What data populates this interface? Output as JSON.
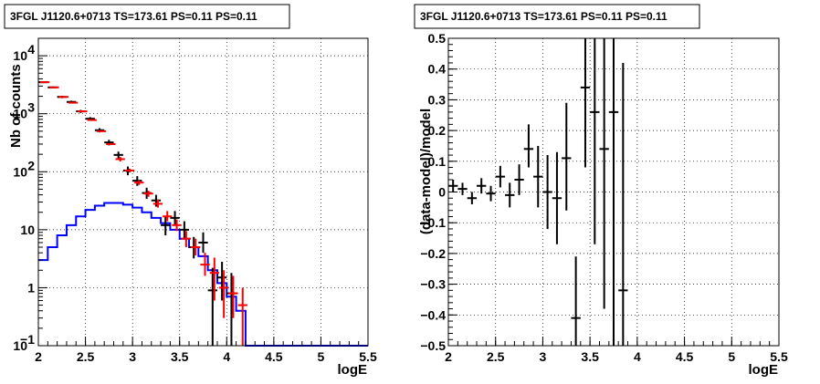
{
  "chart_data": [
    {
      "type": "line",
      "title": "3FGL J1120.6+0713 TS=173.61 PS=0.11 PS=0.11",
      "xlabel": "logE",
      "ylabel": "Nb of counts",
      "xlim": [
        2,
        5.5
      ],
      "ylim": [
        0.1,
        20000
      ],
      "yscale": "log",
      "grid": true,
      "x_ticks": [
        "2",
        "2.5",
        "3",
        "3.5",
        "4",
        "4.5",
        "5",
        "5.5"
      ],
      "y_ticks": [
        {
          "value": 0.1,
          "label": "10",
          "sup": "−1"
        },
        {
          "value": 1,
          "label": "1",
          "sup": ""
        },
        {
          "value": 10,
          "label": "10",
          "sup": ""
        },
        {
          "value": 100,
          "label": "10",
          "sup": "2"
        },
        {
          "value": 1000,
          "label": "10",
          "sup": "3"
        },
        {
          "value": 10000,
          "label": "10",
          "sup": "4"
        }
      ],
      "series": [
        {
          "color": "#000000",
          "kind": "data-points",
          "points": [
            {
              "x": 2.05,
              "y": 3500,
              "lo": 3380,
              "hi": 3620
            },
            {
              "x": 2.15,
              "y": 2850,
              "lo": 2740,
              "hi": 2960
            },
            {
              "x": 2.25,
              "y": 1950,
              "lo": 1860,
              "hi": 2040
            },
            {
              "x": 2.35,
              "y": 1600,
              "lo": 1520,
              "hi": 1680
            },
            {
              "x": 2.45,
              "y": 1100,
              "lo": 1035,
              "hi": 1165
            },
            {
              "x": 2.55,
              "y": 820,
              "lo": 765,
              "hi": 875
            },
            {
              "x": 2.65,
              "y": 520,
              "lo": 477,
              "hi": 563
            },
            {
              "x": 2.75,
              "y": 320,
              "lo": 285,
              "hi": 355
            },
            {
              "x": 2.85,
              "y": 195,
              "lo": 168,
              "hi": 222
            },
            {
              "x": 2.95,
              "y": 105,
              "lo": 87,
              "hi": 123
            },
            {
              "x": 3.05,
              "y": 70,
              "lo": 57,
              "hi": 84
            },
            {
              "x": 3.15,
              "y": 43,
              "lo": 34,
              "hi": 53
            },
            {
              "x": 3.25,
              "y": 32,
              "lo": 25,
              "hi": 40
            },
            {
              "x": 3.35,
              "y": 12,
              "lo": 8,
              "hi": 17
            },
            {
              "x": 3.45,
              "y": 16,
              "lo": 12,
              "hi": 21
            },
            {
              "x": 3.55,
              "y": 10,
              "lo": 7,
              "hi": 14
            },
            {
              "x": 3.65,
              "y": 5,
              "lo": 3.2,
              "hi": 7.5
            },
            {
              "x": 3.75,
              "y": 6,
              "lo": 4,
              "hi": 9
            },
            {
              "x": 3.85,
              "y": 0.9,
              "lo": 0.1,
              "hi": 2.2
            },
            {
              "x": 3.95,
              "y": 1.5,
              "lo": 0.6,
              "hi": 2.8
            },
            {
              "x": 4.05,
              "y": 0.8,
              "lo": 0.1,
              "hi": 1.8
            }
          ]
        },
        {
          "color": "#ff0000",
          "kind": "model-crosses",
          "points": [
            {
              "x": 2.05,
              "y": 3500,
              "lo": 3450,
              "hi": 3550
            },
            {
              "x": 2.15,
              "y": 2850,
              "lo": 2810,
              "hi": 2890
            },
            {
              "x": 2.25,
              "y": 1950,
              "lo": 1920,
              "hi": 1980
            },
            {
              "x": 2.35,
              "y": 1550,
              "lo": 1525,
              "hi": 1575
            },
            {
              "x": 2.45,
              "y": 1100,
              "lo": 1080,
              "hi": 1120
            },
            {
              "x": 2.55,
              "y": 780,
              "lo": 765,
              "hi": 795
            },
            {
              "x": 2.65,
              "y": 500,
              "lo": 490,
              "hi": 510
            },
            {
              "x": 2.75,
              "y": 300,
              "lo": 290,
              "hi": 310
            },
            {
              "x": 2.85,
              "y": 165,
              "lo": 150,
              "hi": 180
            },
            {
              "x": 2.95,
              "y": 105,
              "lo": 97,
              "hi": 113
            },
            {
              "x": 3.05,
              "y": 65,
              "lo": 59,
              "hi": 71
            },
            {
              "x": 3.15,
              "y": 42,
              "lo": 37,
              "hi": 47
            },
            {
              "x": 3.25,
              "y": 28,
              "lo": 24,
              "hi": 33
            },
            {
              "x": 3.35,
              "y": 17,
              "lo": 14,
              "hi": 21
            },
            {
              "x": 3.45,
              "y": 12,
              "lo": 9.5,
              "hi": 15
            },
            {
              "x": 3.55,
              "y": 7,
              "lo": 5,
              "hi": 9.5
            },
            {
              "x": 3.65,
              "y": 5,
              "lo": 3.6,
              "hi": 7
            },
            {
              "x": 3.75,
              "y": 2.5,
              "lo": 1.6,
              "hi": 4
            },
            {
              "x": 3.85,
              "y": 1.8,
              "lo": 0.6,
              "hi": 3.3
            },
            {
              "x": 3.95,
              "y": 1.0,
              "lo": 0.3,
              "hi": 2.0
            },
            {
              "x": 4.05,
              "y": 0.8,
              "lo": 0.3,
              "hi": 1.6
            },
            {
              "x": 4.15,
              "y": 0.5,
              "lo": 0.1,
              "hi": 1.0
            }
          ]
        },
        {
          "color": "#0000ff",
          "kind": "step-histogram",
          "bin_width": 0.1,
          "bin_starts": [
            2.0,
            2.1,
            2.2,
            2.3,
            2.4,
            2.5,
            2.6,
            2.7,
            2.8,
            2.9,
            3.0,
            3.1,
            3.2,
            3.3,
            3.4,
            3.5,
            3.6,
            3.7,
            3.8,
            3.9,
            4.0,
            4.1,
            4.2,
            4.3,
            4.4,
            4.5,
            4.6,
            4.7,
            4.8,
            4.9,
            5.0,
            5.1,
            5.2,
            5.3,
            5.4
          ],
          "values": [
            3,
            5,
            8,
            12,
            17,
            22,
            26,
            29,
            29,
            27,
            24,
            20,
            16,
            13,
            10,
            7,
            5,
            3.5,
            2,
            1.2,
            0.7,
            0.4,
            0.1,
            0.1,
            0.1,
            0.1,
            0.1,
            0.1,
            0.1,
            0.1,
            0.1,
            0.1,
            0.1,
            0.1,
            0.1
          ]
        }
      ]
    },
    {
      "type": "scatter",
      "title": "3FGL J1120.6+0713 TS=173.61 PS=0.11 PS=0.11",
      "xlabel": "logE",
      "ylabel": "(data-model)/model",
      "xlim": [
        2,
        5.5
      ],
      "ylim": [
        -0.5,
        0.5
      ],
      "grid": true,
      "x_ticks": [
        "2",
        "2.5",
        "3",
        "3.5",
        "4",
        "4.5",
        "5",
        "5.5"
      ],
      "y_ticks": [
        "−0.5",
        "−0.4",
        "−0.3",
        "−0.2",
        "−0.1",
        "0",
        "0.1",
        "0.2",
        "0.3",
        "0.4",
        "0.5"
      ],
      "series": [
        {
          "color": "#000000",
          "points": [
            {
              "x": 2.05,
              "y": 0.02,
              "lo": 0.0,
              "hi": 0.04
            },
            {
              "x": 2.15,
              "y": 0.01,
              "lo": -0.01,
              "hi": 0.03
            },
            {
              "x": 2.25,
              "y": -0.02,
              "lo": -0.04,
              "hi": 0.0
            },
            {
              "x": 2.35,
              "y": 0.02,
              "lo": -0.005,
              "hi": 0.045
            },
            {
              "x": 2.45,
              "y": -0.005,
              "lo": -0.03,
              "hi": 0.02
            },
            {
              "x": 2.55,
              "y": 0.05,
              "lo": 0.015,
              "hi": 0.085
            },
            {
              "x": 2.65,
              "y": -0.01,
              "lo": -0.05,
              "hi": 0.03
            },
            {
              "x": 2.75,
              "y": 0.04,
              "lo": -0.01,
              "hi": 0.09
            },
            {
              "x": 2.85,
              "y": 0.14,
              "lo": 0.08,
              "hi": 0.22
            },
            {
              "x": 2.95,
              "y": 0.05,
              "lo": -0.05,
              "hi": 0.15
            },
            {
              "x": 3.05,
              "y": 0.0,
              "lo": -0.12,
              "hi": 0.12
            },
            {
              "x": 3.15,
              "y": -0.02,
              "lo": -0.17,
              "hi": 0.13
            },
            {
              "x": 3.25,
              "y": 0.11,
              "lo": -0.06,
              "hi": 0.29
            },
            {
              "x": 3.35,
              "y": -0.41,
              "lo": -0.5,
              "hi": -0.21
            },
            {
              "x": 3.45,
              "y": 0.34,
              "lo": 0.08,
              "hi": 0.5
            },
            {
              "x": 3.55,
              "y": 0.26,
              "lo": -0.17,
              "hi": 0.5
            },
            {
              "x": 3.65,
              "y": 0.14,
              "lo": -0.38,
              "hi": 0.5
            },
            {
              "x": 3.75,
              "y": 0.26,
              "lo": -0.5,
              "hi": 0.5
            },
            {
              "x": 3.85,
              "y": -0.32,
              "lo": -0.5,
              "hi": 0.42
            }
          ]
        }
      ]
    }
  ]
}
